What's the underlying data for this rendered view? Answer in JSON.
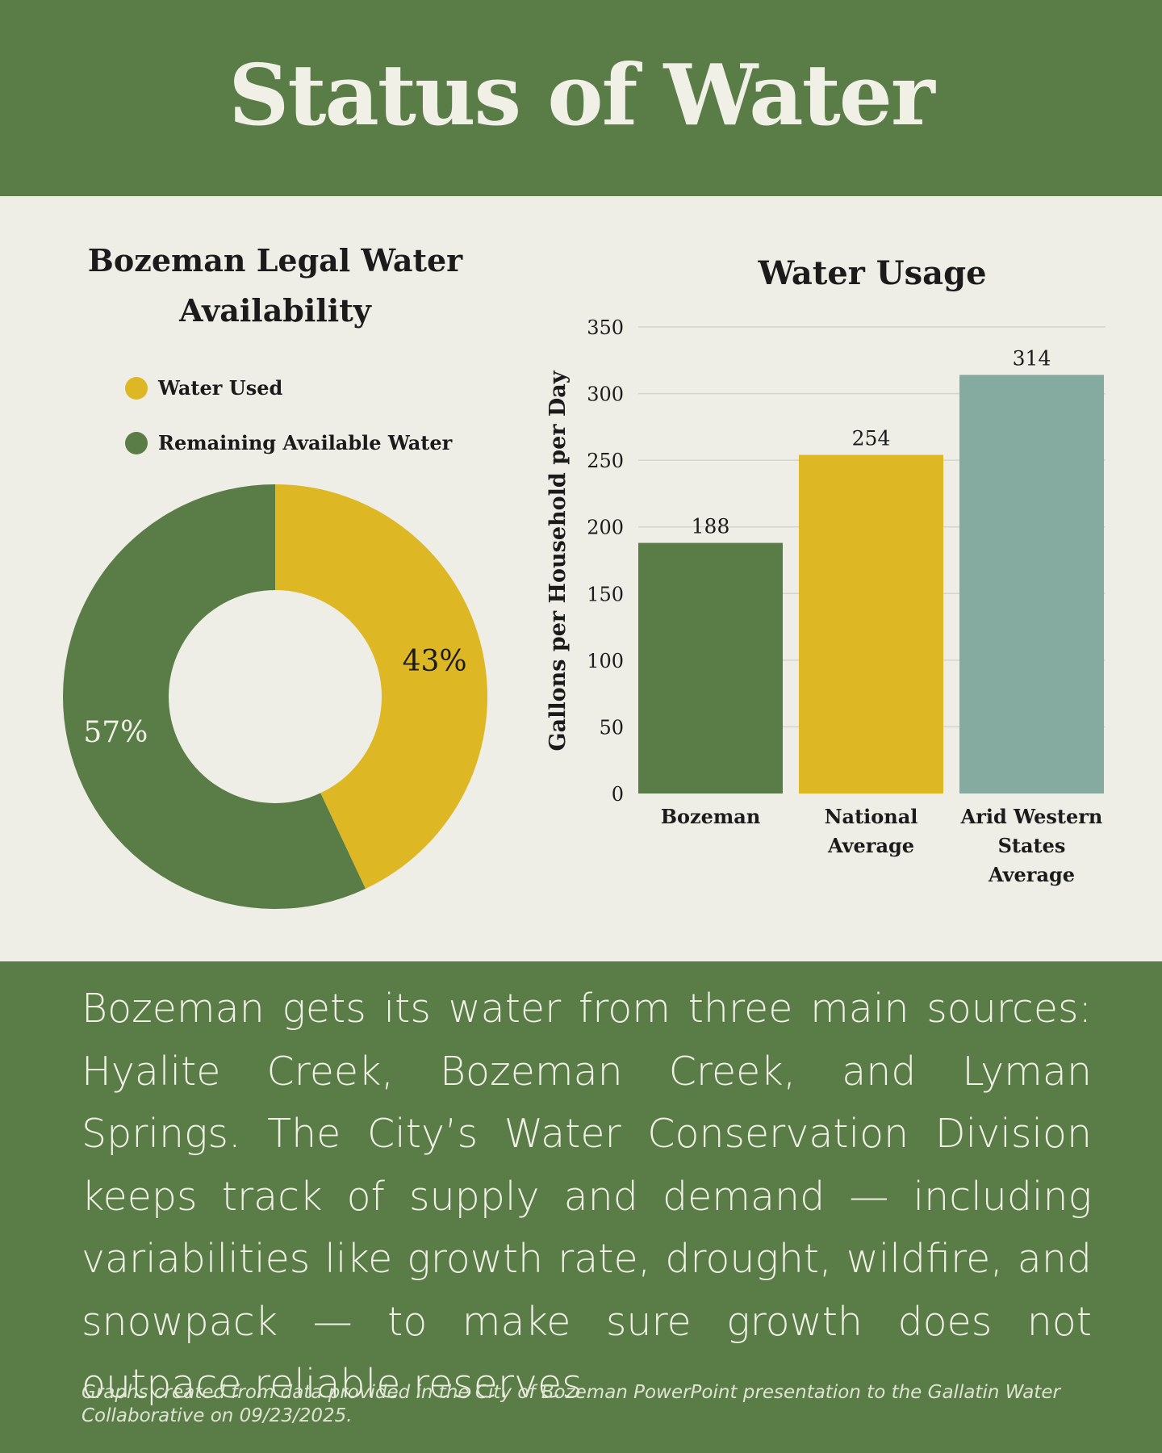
{
  "header": {
    "title": "Status of Water"
  },
  "colors": {
    "green": "#5a7d48",
    "gold": "#deb725",
    "teal": "#85aa9f",
    "cream": "#eeeee6"
  },
  "chart_data": [
    {
      "type": "pie",
      "style": "donut",
      "title": "Bozeman Legal Water Availability",
      "legend_position": "top-left",
      "slices": [
        {
          "label": "Water Used",
          "value": 43,
          "display": "43%",
          "color": "#deb725"
        },
        {
          "label": "Remaining Available Water",
          "value": 57,
          "display": "57%",
          "color": "#5a7d48"
        }
      ]
    },
    {
      "type": "bar",
      "title": "Water Usage",
      "xlabel": "",
      "ylabel": "Gallons per Household per Day",
      "ylim": [
        0,
        350
      ],
      "yticks": [
        0,
        50,
        100,
        150,
        200,
        250,
        300,
        350
      ],
      "grid": true,
      "categories": [
        [
          "Bozeman"
        ],
        [
          "National",
          "Average"
        ],
        [
          "Arid Western",
          "States",
          "Average"
        ]
      ],
      "values": [
        188,
        254,
        314
      ],
      "colors": [
        "#5a7d48",
        "#deb725",
        "#85aa9f"
      ]
    }
  ],
  "body": {
    "paragraph": "Bozeman gets its water from three main sources: Hyalite Creek, Bozeman Creek, and Lyman Springs. The City’s Water Conservation Division keeps track of supply and demand — including variabilities like growth rate, drought, wildfire, and snowpack — to make sure growth does not outpace reliable reserves.",
    "credit": "Graphs created from data provided in the City of Bozeman PowerPoint presentation to the Gallatin Water Collaborative on 09/23/2025."
  }
}
